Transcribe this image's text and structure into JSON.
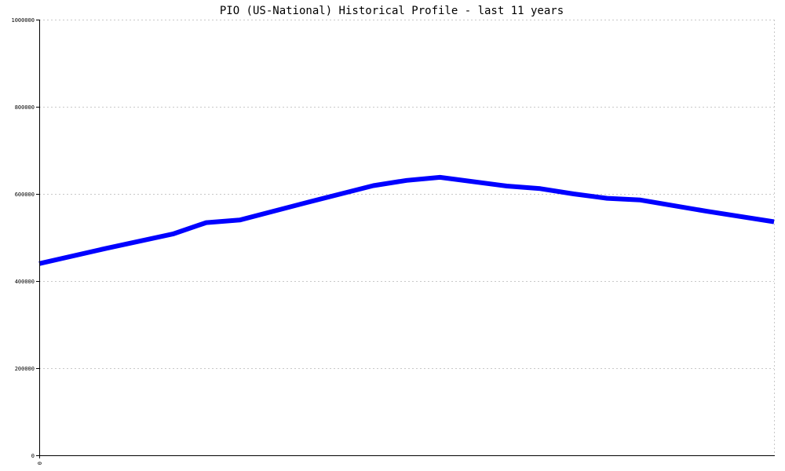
{
  "chart_data": {
    "type": "line",
    "title": "PIO (US-National) Historical Profile - last 11 years",
    "xlabel": "",
    "ylabel": "",
    "ylim": [
      0,
      1000000
    ],
    "xlim": [
      0,
      11
    ],
    "x_tick_labels": [
      "0"
    ],
    "y_ticks": [
      0,
      200000,
      400000,
      600000,
      800000,
      1000000
    ],
    "y_tick_labels": [
      "0",
      "200000",
      "400000",
      "600000",
      "800000",
      "1000000"
    ],
    "grid": true,
    "legend": "none",
    "series": [
      {
        "color": "#0000ff",
        "x": [
          0,
          1,
          2,
          2.5,
          3,
          4,
          5,
          5.5,
          6,
          7,
          7.5,
          8,
          8.5,
          9,
          10,
          11
        ],
        "y": [
          440000,
          475000,
          508000,
          534000,
          540000,
          580000,
          619000,
          631000,
          638000,
          618000,
          612000,
          600000,
          590000,
          586000,
          560000,
          536000
        ]
      }
    ]
  }
}
